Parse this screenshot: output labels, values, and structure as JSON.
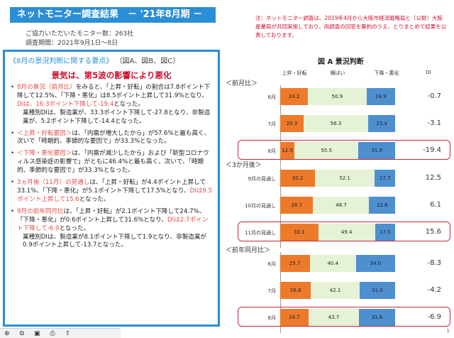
{
  "header": {
    "title": "ネットモニター調査結果　－ '21年8月期 －",
    "respondents": "ご協力いただいたモニター数：263社",
    "period": "調査期間：2021年9月1日～8日"
  },
  "note": "注：ネットモニター調査は、2019年4月から大阪市経済戦略局と（公財）大阪産業局が共同実施しており、両調査の回答を集約のうえ、とりまとめて結果を公表しております。",
  "summary": {
    "heading_main": "《8月の景況判断に関する要点》",
    "heading_refs": "（図A、図B、図C）",
    "headline": "景気は、第5波の影響により悪化",
    "bullets": [
      {
        "lead": "8月の景況（前月比）",
        "text1": "をみると、「上昇・好転」の割合は7.8ポイント下降して12.5%、「下降・悪化」は8.5ポイント上昇して31.9%となり、",
        "di": "DIは、16.3ポイント下降して-19.4",
        "text2": "となった。",
        "extra": "業種別DIは、製造業が、33.3ポイント下降して-27.8となり、非製造業が、5.2ポイント下降して-14.4となった。"
      },
      {
        "lead": "＜上昇・好転要因＞",
        "text1": "は、「内需が増大したから」が57.6%と最も高く、次いで「時期的、季節的な要因で」が33.3%となった。"
      },
      {
        "lead": "＜下降・悪化要因＞",
        "text1": "は、「内需が減少したから」および「新型コロナウィルス感染症の影響で」がともに46.4%と最も高く、次いで、「時期的、季節的な要因で」が33.3%となった。"
      },
      {
        "lead": "3ヵ月後（11月）の見通し",
        "text1": "は、「上昇・好転」が4.4ポイント上昇して33.1%、「下降・悪化」が5.1ポイント下降して17.5%となり、",
        "di": "DIは9.5ポイント上昇して15.6",
        "text2": "となった。"
      },
      {
        "lead": "8月の前年同月比",
        "text1": "は、「上昇・好転」が2.1ポイント下降して24.7%、「下降・悪化」が0.6ポイント上昇して31.6%となり、",
        "di": "DIは2.7ポイント下降して-6.9",
        "text2": "となった。",
        "extra": "業種別DIは、製造業が8.1ポイント下降して1.9となり、非製造業が0.9ポイント上昇して-13.7となった。"
      }
    ]
  },
  "chart_data": {
    "type": "bar",
    "stacked": true,
    "orientation": "horizontal",
    "title": "図 A  景況判断",
    "column_headers": [
      "上昇・好転",
      "横ばい",
      "下降・悪化",
      "DI"
    ],
    "series": [
      {
        "name": "上昇・好転",
        "color": "#ec7a2a"
      },
      {
        "name": "横ばい",
        "color": "#e6f2d6"
      },
      {
        "name": "下降・悪化",
        "color": "#4e8fd0"
      }
    ],
    "groups": [
      {
        "label": "＜前月比＞",
        "rows": [
          {
            "label": "6月",
            "values": [
              24.2,
              50.9,
              24.9
            ],
            "di": "-0.7",
            "highlight": false
          },
          {
            "label": "7月",
            "values": [
              20.3,
              56.3,
              23.4
            ],
            "di": "-3.1",
            "highlight": false
          },
          {
            "label": "8月",
            "values": [
              12.5,
              55.5,
              31.9
            ],
            "di": "-19.4",
            "highlight": true
          }
        ]
      },
      {
        "label": "＜3か月後＞",
        "rows": [
          {
            "label": "9月の見通し",
            "values": [
              30.2,
              52.1,
              17.7
            ],
            "di": "12.5",
            "highlight": false
          },
          {
            "label": "10月の見通し",
            "values": [
              28.7,
              48.7,
              22.6
            ],
            "di": "6.1",
            "highlight": false
          },
          {
            "label": "11月の見通し",
            "values": [
              33.1,
              49.4,
              17.5
            ],
            "di": "15.6",
            "highlight": true
          }
        ]
      },
      {
        "label": "＜前年同月比＞",
        "rows": [
          {
            "label": "6月",
            "values": [
              25.7,
              40.4,
              34.0
            ],
            "di": "-8.3",
            "highlight": false
          },
          {
            "label": "7月",
            "values": [
              26.8,
              42.1,
              31.0
            ],
            "di": "-4.2",
            "highlight": false
          },
          {
            "label": "8月",
            "values": [
              24.7,
              43.7,
              31.6
            ],
            "di": "-6.9",
            "highlight": true
          }
        ]
      }
    ]
  },
  "toolbar": {
    "icons": [
      "zoom-icon",
      "copy-icon",
      "save-icon",
      "print-icon",
      "share-icon"
    ]
  },
  "page_number": "1"
}
